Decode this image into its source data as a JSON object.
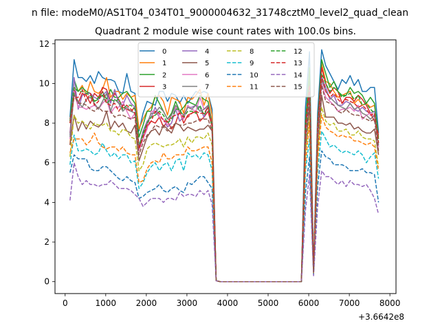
{
  "chart_data": {
    "type": "line",
    "suptitle": "n file: modeM0/AS1T04_034T01_9000004632_31748cztM0_level2_quad_clean",
    "title": "Quadrant 2 module wise count rates with 100.0s bins.",
    "xlabel": "",
    "ylabel": "",
    "x_offset_label": "+3.6642e8",
    "xlim": [
      -250,
      8150
    ],
    "ylim": [
      -0.6,
      12.2
    ],
    "x_ticks": [
      0,
      1000,
      2000,
      3000,
      4000,
      5000,
      6000,
      7000,
      8000
    ],
    "y_ticks": [
      0,
      2,
      4,
      6,
      8,
      10,
      12
    ],
    "x": [
      120,
      220,
      320,
      420,
      520,
      620,
      720,
      820,
      920,
      1020,
      1120,
      1220,
      1320,
      1420,
      1520,
      1620,
      1720,
      1820,
      1920,
      2020,
      2120,
      2220,
      2320,
      2420,
      2520,
      2620,
      2720,
      2820,
      2920,
      3020,
      3120,
      3220,
      3320,
      3420,
      3520,
      3620,
      3720,
      3820,
      5820,
      5920,
      6020,
      6120,
      6220,
      6320,
      6420,
      6520,
      6620,
      6720,
      6820,
      6920,
      7020,
      7120,
      7220,
      7320,
      7420,
      7520,
      7620,
      7720
    ],
    "legend": {
      "location": "upper center",
      "columns": 4
    },
    "series": [
      {
        "name": "0",
        "color": "#1f77b4",
        "dash": "solid",
        "values": [
          8.3,
          11.2,
          10.3,
          10.3,
          10.1,
          10.4,
          10.0,
          10.6,
          10.3,
          10.2,
          10.2,
          10.1,
          9.6,
          9.5,
          10.5,
          9.6,
          9.5,
          7.6,
          8.5,
          9.1,
          9.0,
          8.9,
          9.6,
          9.6,
          9.1,
          9.5,
          9.4,
          9.0,
          9.4,
          9.0,
          9.3,
          9.6,
          9.5,
          9.6,
          9.5,
          8.7,
          0.05,
          0.0,
          0.0,
          8.8,
          11.6,
          0.6,
          8.5,
          11.7,
          10.9,
          10.5,
          10.1,
          9.7,
          10.2,
          10.0,
          10.4,
          9.9,
          10.2,
          9.6,
          9.6,
          9.8,
          9.8,
          7.5
        ]
      },
      {
        "name": "1",
        "color": "#ff7f0e",
        "dash": "solid",
        "values": [
          6.9,
          9.8,
          9.6,
          9.9,
          9.4,
          10.1,
          9.6,
          9.5,
          9.7,
          10.3,
          9.3,
          9.6,
          9.6,
          9.2,
          9.5,
          9.3,
          9.4,
          7.7,
          8.2,
          8.6,
          8.8,
          9.3,
          9.4,
          9.1,
          8.4,
          9.3,
          9.2,
          9.1,
          8.5,
          9.3,
          9.2,
          9.4,
          9.7,
          8.9,
          9.5,
          8.4,
          0.05,
          0.0,
          0.0,
          7.4,
          10.4,
          0.5,
          7.9,
          11.0,
          10.1,
          10.0,
          9.6,
          9.3,
          9.4,
          9.5,
          9.6,
          9.0,
          9.2,
          8.9,
          9.0,
          8.8,
          8.9,
          7.3
        ]
      },
      {
        "name": "2",
        "color": "#2ca02c",
        "dash": "solid",
        "values": [
          8.1,
          10.2,
          9.6,
          9.8,
          9.6,
          9.5,
          9.1,
          9.2,
          9.6,
          9.2,
          9.7,
          9.3,
          9.3,
          9.5,
          9.6,
          9.3,
          9.0,
          7.3,
          7.9,
          8.6,
          8.6,
          9.4,
          9.0,
          8.6,
          8.2,
          8.5,
          9.1,
          8.6,
          8.8,
          9.1,
          9.0,
          8.9,
          9.4,
          9.2,
          9.1,
          8.0,
          0.05,
          0.0,
          0.0,
          8.0,
          10.8,
          0.5,
          7.9,
          11.2,
          10.5,
          9.8,
          10.1,
          9.6,
          9.4,
          9.4,
          9.8,
          9.5,
          9.6,
          9.4,
          9.0,
          9.3,
          9.0,
          7.2
        ]
      },
      {
        "name": "3",
        "color": "#d62728",
        "dash": "solid",
        "values": [
          7.5,
          9.7,
          9.0,
          9.5,
          9.4,
          9.0,
          9.5,
          9.3,
          9.8,
          9.7,
          9.1,
          9.5,
          9.2,
          8.8,
          8.7,
          8.6,
          8.8,
          6.8,
          7.2,
          7.8,
          8.1,
          8.0,
          8.3,
          7.8,
          8.1,
          7.7,
          8.0,
          8.6,
          8.0,
          8.4,
          8.5,
          8.6,
          8.1,
          8.3,
          8.6,
          7.8,
          0.05,
          0.0,
          0.0,
          7.9,
          10.0,
          0.5,
          7.8,
          10.8,
          10.0,
          9.5,
          9.8,
          9.6,
          9.0,
          9.3,
          9.3,
          9.1,
          9.4,
          9.2,
          8.9,
          8.5,
          8.1,
          7.4
        ]
      },
      {
        "name": "4",
        "color": "#9467bd",
        "dash": "solid",
        "values": [
          7.4,
          10.3,
          8.7,
          9.4,
          9.5,
          9.5,
          9.3,
          9.2,
          9.4,
          9.6,
          9.0,
          9.7,
          9.0,
          8.9,
          9.4,
          9.0,
          8.8,
          6.8,
          7.6,
          8.1,
          8.3,
          8.8,
          8.3,
          8.2,
          7.8,
          8.0,
          8.7,
          8.1,
          8.3,
          8.8,
          8.8,
          8.9,
          8.8,
          8.3,
          8.9,
          7.9,
          0.05,
          0.0,
          0.0,
          7.5,
          9.8,
          0.5,
          7.7,
          10.3,
          9.8,
          9.2,
          9.4,
          8.9,
          8.9,
          9.1,
          9.0,
          8.7,
          8.6,
          8.8,
          8.6,
          8.5,
          8.6,
          6.8
        ]
      },
      {
        "name": "5",
        "color": "#8c564b",
        "dash": "solid",
        "values": [
          6.9,
          8.4,
          7.6,
          8.1,
          7.7,
          8.1,
          7.9,
          7.8,
          8.0,
          8.6,
          7.7,
          8.1,
          7.8,
          8.0,
          7.6,
          7.5,
          7.9,
          6.1,
          6.7,
          7.3,
          7.6,
          7.7,
          7.4,
          7.9,
          7.7,
          7.5,
          8.0,
          7.9,
          7.6,
          7.8,
          7.7,
          7.6,
          7.7,
          7.7,
          7.9,
          7.6,
          0.05,
          0.0,
          0.0,
          6.7,
          8.9,
          0.45,
          6.5,
          9.4,
          8.3,
          8.3,
          8.3,
          8.0,
          8.0,
          7.9,
          8.0,
          7.7,
          7.8,
          7.6,
          7.5,
          7.5,
          7.7,
          6.4
        ]
      },
      {
        "name": "6",
        "color": "#e377c2",
        "dash": "solid",
        "values": [
          7.2,
          9.6,
          8.8,
          8.8,
          8.7,
          8.8,
          8.9,
          8.7,
          9.0,
          9.2,
          8.5,
          8.8,
          8.8,
          9.1,
          8.6,
          8.2,
          8.5,
          6.6,
          7.2,
          7.7,
          8.6,
          8.6,
          8.3,
          8.2,
          7.9,
          8.4,
          8.8,
          8.5,
          8.2,
          8.9,
          8.7,
          8.6,
          9.3,
          8.7,
          8.8,
          7.8,
          0.05,
          0.0,
          0.0,
          7.3,
          9.6,
          0.5,
          7.2,
          10.0,
          9.3,
          9.1,
          8.9,
          8.6,
          8.7,
          8.7,
          8.8,
          8.6,
          8.9,
          8.2,
          8.4,
          8.5,
          8.3,
          6.8
        ]
      },
      {
        "name": "7",
        "color": "#7f7f7f",
        "dash": "solid",
        "values": [
          7.3,
          9.5,
          9.1,
          8.8,
          9.2,
          9.3,
          9.0,
          8.7,
          9.1,
          9.5,
          8.6,
          9.2,
          9.0,
          8.6,
          8.8,
          8.6,
          8.5,
          6.9,
          7.4,
          8.0,
          8.5,
          8.5,
          8.8,
          8.6,
          8.2,
          8.4,
          8.9,
          8.6,
          8.4,
          8.8,
          8.7,
          8.9,
          8.6,
          8.7,
          8.9,
          8.0,
          0.05,
          0.0,
          0.0,
          7.5,
          9.6,
          0.5,
          7.5,
          10.2,
          9.6,
          9.3,
          9.1,
          8.9,
          8.8,
          8.7,
          9.0,
          8.7,
          8.8,
          8.5,
          8.4,
          8.2,
          8.4,
          6.9
        ]
      },
      {
        "name": "8",
        "color": "#bcbd22",
        "dash": "dashed",
        "values": [
          6.3,
          8.4,
          8.0,
          8.1,
          7.9,
          7.7,
          8.0,
          7.9,
          7.9,
          8.0,
          7.6,
          7.6,
          7.4,
          7.7,
          7.6,
          7.3,
          7.2,
          5.6,
          5.9,
          6.7,
          6.9,
          7.0,
          6.9,
          6.8,
          6.9,
          6.9,
          7.0,
          7.2,
          6.8,
          7.3,
          7.0,
          7.3,
          7.3,
          7.2,
          7.5,
          6.9,
          0.05,
          0.0,
          0.0,
          6.5,
          8.3,
          0.45,
          6.6,
          8.8,
          8.1,
          7.9,
          8.0,
          7.6,
          7.6,
          7.7,
          7.4,
          7.4,
          7.6,
          7.3,
          7.2,
          7.2,
          7.1,
          5.8
        ]
      },
      {
        "name": "9",
        "color": "#17becf",
        "dash": "dashed",
        "values": [
          5.9,
          7.4,
          6.6,
          6.6,
          6.7,
          6.6,
          6.4,
          6.5,
          7.0,
          6.6,
          6.3,
          6.5,
          6.2,
          6.4,
          6.4,
          6.0,
          6.1,
          4.7,
          5.0,
          5.5,
          5.8,
          6.0,
          5.6,
          5.9,
          6.0,
          5.6,
          6.1,
          6.2,
          5.6,
          6.5,
          6.3,
          6.4,
          6.2,
          6.5,
          6.4,
          5.6,
          0.05,
          0.0,
          0.0,
          5.6,
          7.2,
          0.4,
          5.5,
          7.6,
          7.2,
          6.8,
          6.9,
          6.7,
          6.5,
          6.6,
          6.5,
          6.4,
          6.6,
          6.4,
          6.0,
          6.3,
          6.5,
          5.2
        ]
      },
      {
        "name": "10",
        "color": "#1f77b4",
        "dash": "dashed",
        "values": [
          5.5,
          6.4,
          6.2,
          6.2,
          6.2,
          5.7,
          5.6,
          5.6,
          5.8,
          5.8,
          5.6,
          5.4,
          5.2,
          5.1,
          5.3,
          5.1,
          5.0,
          4.2,
          4.3,
          4.5,
          4.6,
          4.7,
          4.9,
          4.6,
          4.5,
          4.7,
          4.8,
          4.6,
          4.5,
          5.0,
          4.9,
          5.1,
          5.3,
          5.3,
          5.0,
          4.7,
          0.05,
          0.0,
          0.0,
          4.5,
          6.3,
          0.35,
          4.8,
          6.6,
          6.3,
          6.2,
          5.9,
          5.9,
          5.9,
          5.8,
          5.6,
          5.6,
          5.6,
          5.7,
          5.5,
          5.5,
          5.4,
          4.0
        ]
      },
      {
        "name": "11",
        "color": "#ff7f0e",
        "dash": "dashed",
        "values": [
          6.5,
          7.2,
          7.2,
          7.2,
          6.9,
          7.1,
          7.5,
          7.0,
          6.8,
          6.7,
          6.8,
          6.8,
          6.6,
          6.8,
          6.5,
          6.4,
          6.4,
          5.0,
          5.1,
          5.7,
          6.0,
          6.1,
          6.0,
          6.5,
          6.2,
          6.2,
          6.4,
          6.4,
          6.4,
          6.8,
          6.6,
          6.6,
          6.7,
          6.8,
          6.8,
          6.0,
          0.05,
          0.0,
          0.0,
          6.0,
          8.0,
          0.45,
          6.1,
          8.4,
          7.8,
          7.6,
          7.5,
          7.3,
          7.4,
          7.3,
          7.3,
          7.1,
          7.1,
          7.0,
          6.9,
          7.0,
          6.8,
          5.6
        ]
      },
      {
        "name": "12",
        "color": "#2ca02c",
        "dash": "dashed",
        "values": [
          8.0,
          9.8,
          9.6,
          9.6,
          9.5,
          9.4,
          9.1,
          9.3,
          9.4,
          9.0,
          9.2,
          9.1,
          9.2,
          8.7,
          8.9,
          8.9,
          8.7,
          6.8,
          7.5,
          8.0,
          8.3,
          8.4,
          8.6,
          8.4,
          8.0,
          8.2,
          8.7,
          8.7,
          8.3,
          8.6,
          8.6,
          8.5,
          8.9,
          8.4,
          8.8,
          7.8,
          0.05,
          0.0,
          0.0,
          7.8,
          10.1,
          0.5,
          7.8,
          10.5,
          10.0,
          9.6,
          9.8,
          9.6,
          9.3,
          9.4,
          9.5,
          9.2,
          9.4,
          8.9,
          9.0,
          8.7,
          8.5,
          7.0
        ]
      },
      {
        "name": "13",
        "color": "#d62728",
        "dash": "dashed",
        "values": [
          8.0,
          9.3,
          9.3,
          9.7,
          9.1,
          9.5,
          8.9,
          9.1,
          9.6,
          9.0,
          8.9,
          9.0,
          8.6,
          8.9,
          8.9,
          8.7,
          8.5,
          6.7,
          7.3,
          7.9,
          8.1,
          8.6,
          8.5,
          8.1,
          8.1,
          8.3,
          8.4,
          8.5,
          8.3,
          8.3,
          8.5,
          8.6,
          8.5,
          8.5,
          8.8,
          7.9,
          0.05,
          0.0,
          0.0,
          7.7,
          9.9,
          0.5,
          7.7,
          10.4,
          9.6,
          9.3,
          9.5,
          9.2,
          9.0,
          9.2,
          9.1,
          9.0,
          8.8,
          8.9,
          8.7,
          8.4,
          8.5,
          7.0
        ]
      },
      {
        "name": "14",
        "color": "#9467bd",
        "dash": "dashed",
        "values": [
          4.1,
          6.0,
          5.3,
          4.9,
          5.1,
          4.9,
          4.9,
          4.8,
          4.9,
          4.9,
          5.1,
          4.9,
          4.7,
          4.7,
          4.7,
          4.6,
          4.4,
          4.2,
          3.8,
          4.0,
          4.2,
          4.2,
          4.2,
          4.0,
          4.2,
          4.2,
          4.1,
          4.5,
          4.3,
          4.4,
          4.4,
          4.3,
          4.6,
          4.4,
          4.6,
          3.9,
          0.05,
          0.0,
          0.0,
          3.6,
          5.4,
          0.3,
          3.8,
          5.6,
          5.3,
          5.3,
          5.1,
          4.9,
          5.1,
          4.8,
          5.1,
          4.9,
          4.9,
          4.8,
          4.9,
          4.6,
          4.2,
          3.4
        ]
      },
      {
        "name": "15",
        "color": "#8c564b",
        "dash": "dashed",
        "values": [
          8.2,
          9.4,
          9.0,
          9.0,
          8.9,
          8.7,
          8.6,
          8.8,
          8.6,
          8.6,
          8.6,
          8.3,
          8.4,
          8.4,
          8.3,
          8.2,
          8.3,
          6.4,
          7.0,
          7.4,
          7.6,
          7.9,
          7.8,
          7.8,
          7.6,
          7.8,
          8.0,
          7.9,
          7.9,
          8.0,
          8.0,
          8.1,
          8.2,
          8.2,
          8.2,
          7.6,
          0.05,
          0.0,
          0.0,
          7.3,
          9.3,
          0.5,
          7.3,
          9.9,
          9.1,
          9.0,
          8.9,
          8.6,
          8.5,
          8.7,
          8.5,
          8.4,
          8.4,
          8.3,
          8.2,
          8.1,
          8.2,
          6.6
        ]
      }
    ]
  }
}
